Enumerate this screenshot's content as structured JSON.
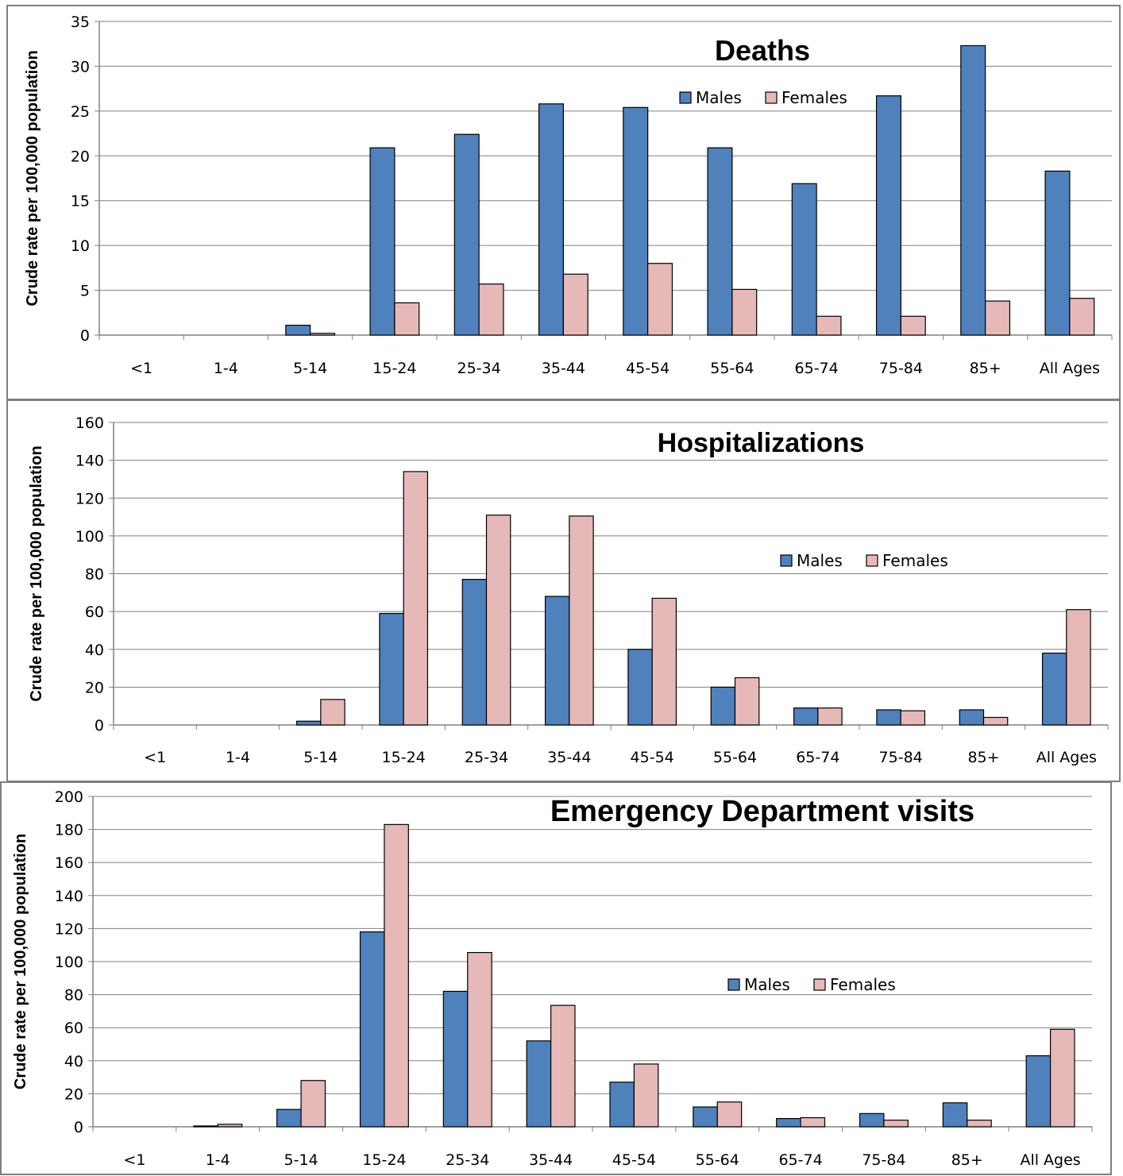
{
  "colors": {
    "males": "#4f81bd",
    "females": "#e6b9b8",
    "bar_edge": "#000000",
    "grid": "#808080"
  },
  "chart_data": [
    {
      "type": "bar",
      "title": "Deaths",
      "ylabel": "Crude rate per 100,000 population",
      "xlabel": "",
      "ylim": [
        0,
        35
      ],
      "yticks": [
        "0",
        "5",
        "10",
        "15",
        "20",
        "25",
        "30",
        "35"
      ],
      "categories": [
        "<1",
        "1-4",
        "5-14",
        "15-24",
        "25-34",
        "35-44",
        "45-54",
        "55-64",
        "65-74",
        "75-84",
        "85+",
        "All Ages"
      ],
      "series": [
        {
          "name": "Males",
          "values": [
            0,
            0,
            1.1,
            20.9,
            22.4,
            25.8,
            25.4,
            20.9,
            16.9,
            26.7,
            32.3,
            18.3
          ]
        },
        {
          "name": "Females",
          "values": [
            0,
            0,
            0.2,
            3.6,
            5.7,
            6.8,
            8.0,
            5.1,
            2.1,
            2.1,
            3.8,
            4.1
          ]
        }
      ],
      "legend": "top-center",
      "grid": true
    },
    {
      "type": "bar",
      "title": "Hospitalizations",
      "ylabel": "Crude rate per 100,000 population",
      "xlabel": "",
      "ylim": [
        0,
        160
      ],
      "yticks": [
        "0",
        "20",
        "40",
        "60",
        "80",
        "100",
        "120",
        "140",
        "160"
      ],
      "categories": [
        "<1",
        "1-4",
        "5-14",
        "15-24",
        "25-34",
        "35-44",
        "45-54",
        "55-64",
        "65-74",
        "75-84",
        "85+",
        "All Ages"
      ],
      "series": [
        {
          "name": "Males",
          "values": [
            0,
            0,
            2,
            59,
            77,
            68,
            40,
            20,
            9,
            8,
            8,
            38
          ]
        },
        {
          "name": "Females",
          "values": [
            0,
            0,
            13.5,
            134,
            111,
            110.5,
            67,
            25,
            9,
            7.5,
            4,
            61
          ]
        }
      ],
      "legend": "center-right",
      "grid": true
    },
    {
      "type": "bar",
      "title": "Emergency Department visits",
      "ylabel": "Crude rate per 100,000 population",
      "xlabel": "",
      "ylim": [
        0,
        200
      ],
      "yticks": [
        "0",
        "20",
        "40",
        "60",
        "80",
        "100",
        "120",
        "140",
        "160",
        "180",
        "200"
      ],
      "categories": [
        "<1",
        "1-4",
        "5-14",
        "15-24",
        "25-34",
        "35-44",
        "45-54",
        "55-64",
        "65-74",
        "75-84",
        "85+",
        "All Ages"
      ],
      "series": [
        {
          "name": "Males",
          "values": [
            0,
            0.5,
            10.5,
            118,
            82,
            52,
            27,
            12,
            5,
            8,
            14.5,
            43
          ]
        },
        {
          "name": "Females",
          "values": [
            0,
            1.5,
            28,
            183,
            105.5,
            73.5,
            38,
            15,
            5.5,
            4,
            4,
            59
          ]
        }
      ],
      "legend": "center-right",
      "grid": true
    }
  ]
}
